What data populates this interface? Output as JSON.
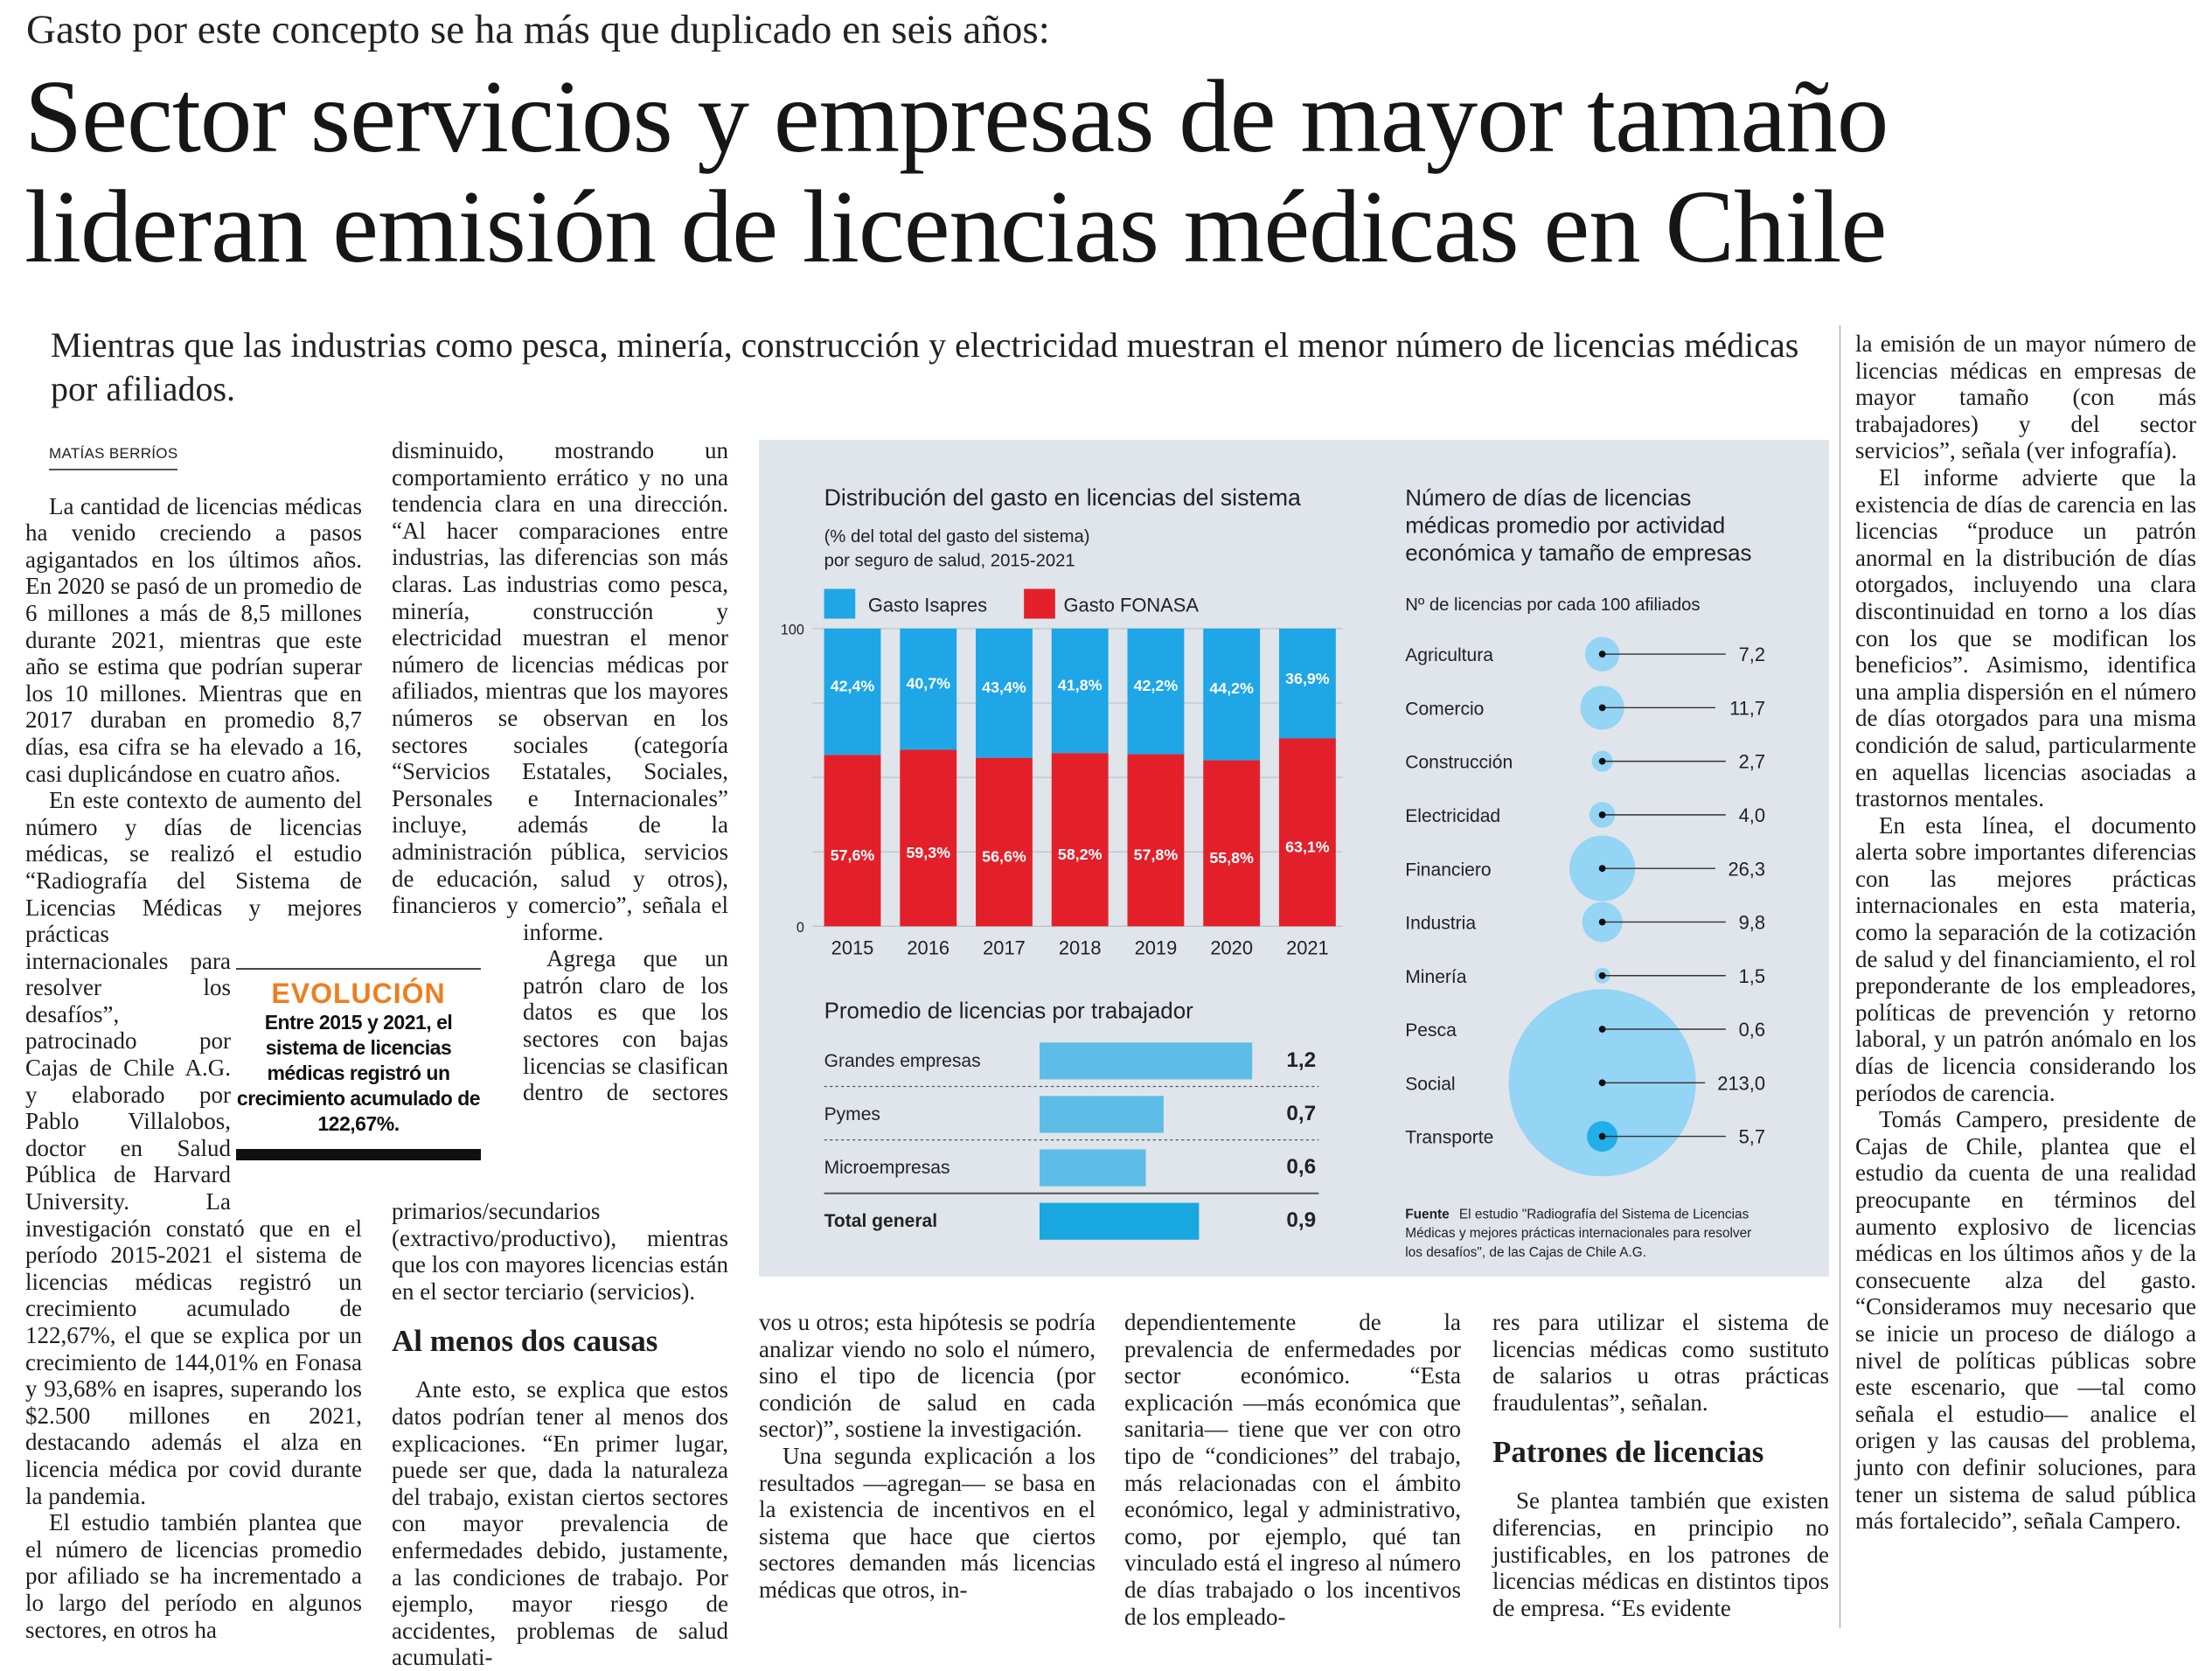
{
  "header": {
    "kicker": "Gasto por este concepto se ha más que duplicado en seis años:",
    "title_line1": "Sector servicios y empresas de mayor tamaño",
    "title_line2": "lideran emisión de licencias médicas en Chile",
    "deck": "Mientras que las industrias como pesca, minería, construcción y electricidad muestran el menor número de licencias médicas por afiliados."
  },
  "byline": "MATÍAS BERRÍOS",
  "col1": [
    "La cantidad de licencias médicas ha venido creciendo a pasos agigantados en los últimos años. En 2020 se pasó de un promedio de 6 millones a más de 8,5 millones durante 2021, mientras que este año se estima que podrían superar los 10 millones. Mientras que en 2017 duraban en promedio 8,7 días, esa cifra se ha elevado a 16, casi duplicándose en cuatro años.",
    "En este contexto de aumento del número y días de licencias médicas, se realizó el estudio “Radiografía del Sistema de Licencias Médicas y mejores prácticas internacionales para resolver los desafíos”, patrocinado por Cajas de Chile A.G. y elaborado por Pablo Villalobos, doctor en Salud Pública de Harvard University. La investigación constató que en el período 2015-2021 el sistema de licencias médicas registró un crecimiento acumulado de 122,67%, el que se explica por un crecimiento de 144,01% en Fonasa y 93,68% en isapres, superando los $2.500 millones en 2021, destacando además el alza en licencia médica por covid durante la pandemia.",
    "El estudio también plantea que el número de licencias promedio por afiliado se ha incrementado a lo largo del período en algunos sectores, en otros ha"
  ],
  "col2": [
    "disminuido, mostrando un comportamiento errático y no una tendencia clara en una dirección. “Al hacer comparaciones entre industrias, las diferencias son más claras. Las industrias como pesca, minería, construcción y electricidad muestran el menor número de licencias médicas por afiliados, mientras que los mayores números se observan en los sectores sociales (categoría “Servicios Estatales, Sociales, Personales e Internacionales” incluye, además de la administración pública, servicios de educación, salud y otros), financieros y comercio”, señala el informe.",
    "Agrega que un patrón claro de los datos es que los sectores con bajas licencias se clasifican dentro de sectores primarios/secundarios (extractivo/productivo), mientras que los con mayores licencias están en el sector terciario (servicios).",
    "Ante esto, se explica que estos datos podrían tener al menos dos explicaciones. “En primer lugar, puede ser que, dada la naturaleza del trabajo, existan ciertos sectores con mayor prevalencia de enfermedades debido, justamente, a las condiciones de trabajo. Por ejemplo, mayor riesgo de accidentes, problemas de salud acumulati-"
  ],
  "subhead1": "Al menos dos causas",
  "col3": [
    "vos u otros; esta hipótesis se podría analizar viendo no solo el número, sino el tipo de licencia (por condición de salud en cada sector)”, sostiene la investigación.",
    "Una segunda explicación a los resultados —agregan— se basa en la existencia de incentivos en el sistema que hace que ciertos sectores demanden más licencias médicas que otros, in-"
  ],
  "col4": [
    "dependientemente de la prevalencia de enfermedades por sector económico. “Esta explicación —más económica que sanitaria— tiene que ver con otro tipo de “condiciones” del trabajo, más relacionadas con el ámbito económico, legal y administrativo, como, por ejemplo, qué tan vinculado está el ingreso al número de días trabajado o los incentivos de los empleado-"
  ],
  "col5": [
    "res para utilizar el sistema de licencias médicas como sustituto de salarios u otras prácticas fraudulentas”, señalan.",
    "Se plantea también que existen diferencias, en principio no justificables, en los patrones de licencias médicas en distintos tipos de empresa. “Es evidente"
  ],
  "subhead2": "Patrones de licencias",
  "colR": [
    "la emisión de un mayor número de licencias médicas en empresas de mayor tamaño (con más trabajadores) y del sector servicios”, señala (ver infografía).",
    "El informe advierte que la existencia de días de carencia en las licencias “produce un patrón anormal en la distribución de días otorgados, incluyendo una clara discontinuidad en torno a los días con los que se modifican los beneficios”. Asimismo, identifica una amplia dispersión en el número de días otorgados para una misma condición de salud, particularmente en aquellas licencias asociadas a trastornos mentales.",
    "En esta línea, el documento alerta sobre importantes diferencias con las mejores prácticas internacionales en esta materia, como la separación de la cotización de salud y del financiamiento, el rol preponderante de los empleadores, políticas de prevención y retorno laboral, y un patrón anómalo en los días de licencia considerando los períodos de carencia.",
    "Tomás Campero, presidente de Cajas de Chile, plantea que el estudio da cuenta de una realidad preocupante en términos del aumento explosivo de licencias médicas en los últimos años y de la consecuente alza del gasto. “Consideramos muy necesario que se inicie un proceso de diálogo a nivel de políticas públicas sobre este escenario, que —tal como señala el estudio— analice el origen y las causas del problema, junto con definir soluciones, para tener un sistema de salud pública más fortalecido”, señala Campero."
  ],
  "pullquote": {
    "label": "EVOLUCIÓN",
    "text": "Entre 2015 y 2021, el sistema de licencias médicas registró un crecimiento acumulado de 122,67%.",
    "accent": "#f07d1e"
  },
  "chart_data": [
    {
      "type": "bar",
      "stacked": true,
      "title": "Distribución del gasto en licencias del sistema",
      "subtitle": [
        "(% del total del gasto del sistema)",
        "por seguro de salud, 2015-2021"
      ],
      "categories": [
        "2015",
        "2016",
        "2017",
        "2018",
        "2019",
        "2020",
        "2021"
      ],
      "series": [
        {
          "name": "Gasto FONASA",
          "color": "#e3202a",
          "values": [
            57.6,
            59.3,
            56.6,
            58.2,
            57.8,
            55.8,
            63.1
          ],
          "labels": [
            "57,6%",
            "59,3%",
            "56,6%",
            "58,2%",
            "57,8%",
            "55,8%",
            "63,1%"
          ]
        },
        {
          "name": "Gasto Isapres",
          "color": "#1ea6e6",
          "values": [
            42.4,
            40.7,
            43.4,
            41.8,
            42.2,
            44.2,
            36.9
          ],
          "labels": [
            "42,4%",
            "40,7%",
            "43,4%",
            "41,8%",
            "42,2%",
            "44,2%",
            "36,9%"
          ]
        }
      ],
      "ylim": [
        0,
        100
      ],
      "yticks": [
        "0",
        "100"
      ],
      "legend": "top-left"
    },
    {
      "type": "bar",
      "orientation": "horizontal",
      "title": "Promedio de licencias por trabajador",
      "categories": [
        "Grandes empresas",
        "Pymes",
        "Microempresas",
        "Total general"
      ],
      "values": [
        1.2,
        0.7,
        0.6,
        0.9
      ],
      "labels": [
        "1,2",
        "0,7",
        "0,6",
        "0,9"
      ],
      "colors": [
        "#5dbde6",
        "#5dbde6",
        "#5dbde6",
        "#18a8df"
      ]
    },
    {
      "type": "scatter",
      "encoding": "bubble",
      "title": [
        "Número de días de licencias",
        "médicas promedio por actividad",
        "económica y tamaño de empresas"
      ],
      "subtitle": "Nº de licencias por cada 100 afiliados",
      "categories": [
        "Agricultura",
        "Comercio",
        "Construcción",
        "Electricidad",
        "Financiero",
        "Industria",
        "Minería",
        "Pesca",
        "Social",
        "Transporte"
      ],
      "values": [
        7.2,
        11.7,
        2.7,
        4.0,
        26.3,
        9.8,
        1.5,
        0.6,
        213.0,
        5.7
      ],
      "labels": [
        "7,2",
        "11,7",
        "2,7",
        "4,0",
        "26,3",
        "9,8",
        "1,5",
        "0,6",
        "213,0",
        "5,7"
      ],
      "color": "#8fd3f5"
    }
  ],
  "source": {
    "label": "Fuente",
    "lines": [
      "El estudio \"Radiografía del Sistema de Licencias",
      "Médicas y mejores prácticas internacionales para resolver",
      "los desafíos\", de las Cajas de Chile A.G."
    ]
  }
}
